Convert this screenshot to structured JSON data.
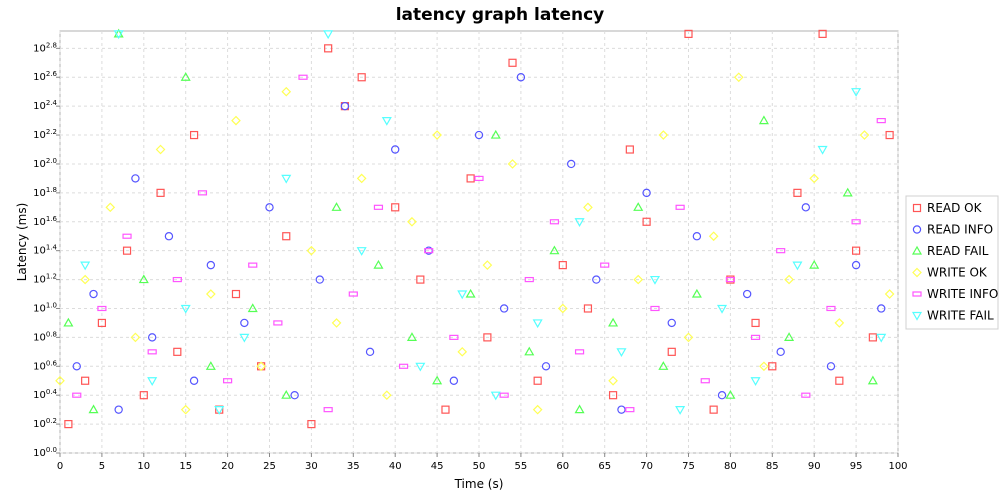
{
  "chart_data": {
    "type": "scatter",
    "title": "latency graph latency",
    "xlabel": "Time (s)",
    "ylabel": "Latency (ms)",
    "xlim": [
      0,
      100
    ],
    "x_ticks": [
      0,
      5,
      10,
      15,
      20,
      25,
      30,
      35,
      40,
      45,
      50,
      55,
      60,
      65,
      70,
      75,
      80,
      85,
      90,
      95,
      100
    ],
    "y_scale": "log10",
    "ylim_exponent": [
      0,
      29.2
    ],
    "y_tick_base": "10",
    "y_tick_exponents": [
      "0.0",
      "0.2",
      "0.4",
      "0.6",
      "0.8",
      "1.0",
      "1.2",
      "1.4",
      "1.6",
      "1.8",
      "2.0",
      "2.2",
      "2.4",
      "2.6",
      "2.8"
    ],
    "y_tick_note": "tick labels printed as 10^exponent with the decimal point shown as superscript",
    "grid": true,
    "legend_position": "right",
    "series": [
      {
        "name": "READ OK",
        "marker": "square",
        "color": "#ff5555",
        "points": [
          [
            1,
            2
          ],
          [
            3,
            5
          ],
          [
            5,
            9
          ],
          [
            8,
            14
          ],
          [
            10,
            4
          ],
          [
            12,
            18
          ],
          [
            14,
            7
          ],
          [
            16,
            22
          ],
          [
            19,
            3
          ],
          [
            21,
            11
          ],
          [
            24,
            6
          ],
          [
            27,
            15
          ],
          [
            30,
            2
          ],
          [
            32,
            28
          ],
          [
            34,
            24
          ],
          [
            36,
            26
          ],
          [
            40,
            17
          ],
          [
            43,
            12
          ],
          [
            46,
            3
          ],
          [
            49,
            19
          ],
          [
            51,
            8
          ],
          [
            54,
            27
          ],
          [
            57,
            5
          ],
          [
            60,
            13
          ],
          [
            63,
            10
          ],
          [
            66,
            4
          ],
          [
            68,
            21
          ],
          [
            70,
            16
          ],
          [
            73,
            7
          ],
          [
            75,
            29
          ],
          [
            78,
            3
          ],
          [
            80,
            12
          ],
          [
            83,
            9
          ],
          [
            85,
            6
          ],
          [
            88,
            18
          ],
          [
            91,
            29
          ],
          [
            93,
            5
          ],
          [
            95,
            14
          ],
          [
            97,
            8
          ],
          [
            99,
            22
          ]
        ]
      },
      {
        "name": "READ INFO",
        "marker": "circle",
        "color": "#5555ff",
        "points": [
          [
            2,
            6
          ],
          [
            4,
            11
          ],
          [
            7,
            3
          ],
          [
            9,
            19
          ],
          [
            11,
            8
          ],
          [
            13,
            15
          ],
          [
            16,
            5
          ],
          [
            18,
            13
          ],
          [
            22,
            9
          ],
          [
            25,
            17
          ],
          [
            28,
            4
          ],
          [
            31,
            12
          ],
          [
            34,
            24
          ],
          [
            37,
            7
          ],
          [
            40,
            21
          ],
          [
            44,
            14
          ],
          [
            47,
            5
          ],
          [
            50,
            22
          ],
          [
            53,
            10
          ],
          [
            55,
            26
          ],
          [
            58,
            6
          ],
          [
            61,
            20
          ],
          [
            64,
            12
          ],
          [
            67,
            3
          ],
          [
            70,
            18
          ],
          [
            73,
            9
          ],
          [
            76,
            15
          ],
          [
            79,
            4
          ],
          [
            82,
            11
          ],
          [
            86,
            7
          ],
          [
            89,
            17
          ],
          [
            92,
            6
          ],
          [
            95,
            13
          ],
          [
            98,
            10
          ]
        ]
      },
      {
        "name": "READ FAIL",
        "marker": "triangle",
        "color": "#55ff55",
        "points": [
          [
            1,
            9
          ],
          [
            4,
            3
          ],
          [
            7,
            29
          ],
          [
            10,
            12
          ],
          [
            15,
            26
          ],
          [
            18,
            6
          ],
          [
            23,
            10
          ],
          [
            27,
            4
          ],
          [
            33,
            17
          ],
          [
            38,
            13
          ],
          [
            42,
            8
          ],
          [
            45,
            5
          ],
          [
            49,
            11
          ],
          [
            52,
            22
          ],
          [
            56,
            7
          ],
          [
            59,
            14
          ],
          [
            62,
            3
          ],
          [
            66,
            9
          ],
          [
            69,
            17
          ],
          [
            72,
            6
          ],
          [
            76,
            11
          ],
          [
            80,
            4
          ],
          [
            84,
            23
          ],
          [
            87,
            8
          ],
          [
            90,
            13
          ],
          [
            94,
            18
          ],
          [
            97,
            5
          ]
        ]
      },
      {
        "name": "WRITE OK",
        "marker": "diamond",
        "color": "#ffff55",
        "points": [
          [
            0,
            5
          ],
          [
            3,
            12
          ],
          [
            6,
            17
          ],
          [
            9,
            8
          ],
          [
            12,
            21
          ],
          [
            15,
            3
          ],
          [
            18,
            11
          ],
          [
            21,
            23
          ],
          [
            24,
            6
          ],
          [
            27,
            25
          ],
          [
            30,
            14
          ],
          [
            33,
            9
          ],
          [
            36,
            19
          ],
          [
            39,
            4
          ],
          [
            42,
            16
          ],
          [
            45,
            22
          ],
          [
            48,
            7
          ],
          [
            51,
            13
          ],
          [
            54,
            20
          ],
          [
            57,
            3
          ],
          [
            60,
            10
          ],
          [
            63,
            17
          ],
          [
            66,
            5
          ],
          [
            69,
            12
          ],
          [
            72,
            22
          ],
          [
            75,
            8
          ],
          [
            78,
            15
          ],
          [
            81,
            26
          ],
          [
            84,
            6
          ],
          [
            87,
            12
          ],
          [
            90,
            19
          ],
          [
            93,
            9
          ],
          [
            96,
            22
          ],
          [
            99,
            11
          ]
        ]
      },
      {
        "name": "WRITE INFO",
        "marker": "rect",
        "color": "#ff55ff",
        "points": [
          [
            2,
            4
          ],
          [
            5,
            10
          ],
          [
            8,
            15
          ],
          [
            11,
            7
          ],
          [
            14,
            12
          ],
          [
            17,
            18
          ],
          [
            20,
            5
          ],
          [
            23,
            13
          ],
          [
            26,
            9
          ],
          [
            29,
            26
          ],
          [
            32,
            3
          ],
          [
            35,
            11
          ],
          [
            38,
            17
          ],
          [
            41,
            6
          ],
          [
            44,
            14
          ],
          [
            47,
            8
          ],
          [
            50,
            19
          ],
          [
            53,
            4
          ],
          [
            56,
            12
          ],
          [
            59,
            16
          ],
          [
            62,
            7
          ],
          [
            65,
            13
          ],
          [
            68,
            3
          ],
          [
            71,
            10
          ],
          [
            74,
            17
          ],
          [
            77,
            5
          ],
          [
            80,
            12
          ],
          [
            83,
            8
          ],
          [
            86,
            14
          ],
          [
            89,
            4
          ],
          [
            92,
            10
          ],
          [
            95,
            16
          ],
          [
            98,
            23
          ]
        ]
      },
      {
        "name": "WRITE FAIL",
        "marker": "triangle-down",
        "color": "#55ffff",
        "points": [
          [
            3,
            13
          ],
          [
            7,
            29
          ],
          [
            11,
            5
          ],
          [
            15,
            10
          ],
          [
            19,
            3
          ],
          [
            22,
            8
          ],
          [
            27,
            19
          ],
          [
            32,
            29
          ],
          [
            36,
            14
          ],
          [
            39,
            23
          ],
          [
            43,
            6
          ],
          [
            48,
            11
          ],
          [
            52,
            4
          ],
          [
            57,
            9
          ],
          [
            62,
            16
          ],
          [
            67,
            7
          ],
          [
            71,
            12
          ],
          [
            74,
            3
          ],
          [
            79,
            10
          ],
          [
            83,
            5
          ],
          [
            88,
            13
          ],
          [
            91,
            21
          ],
          [
            95,
            25
          ],
          [
            98,
            8
          ]
        ]
      }
    ]
  }
}
